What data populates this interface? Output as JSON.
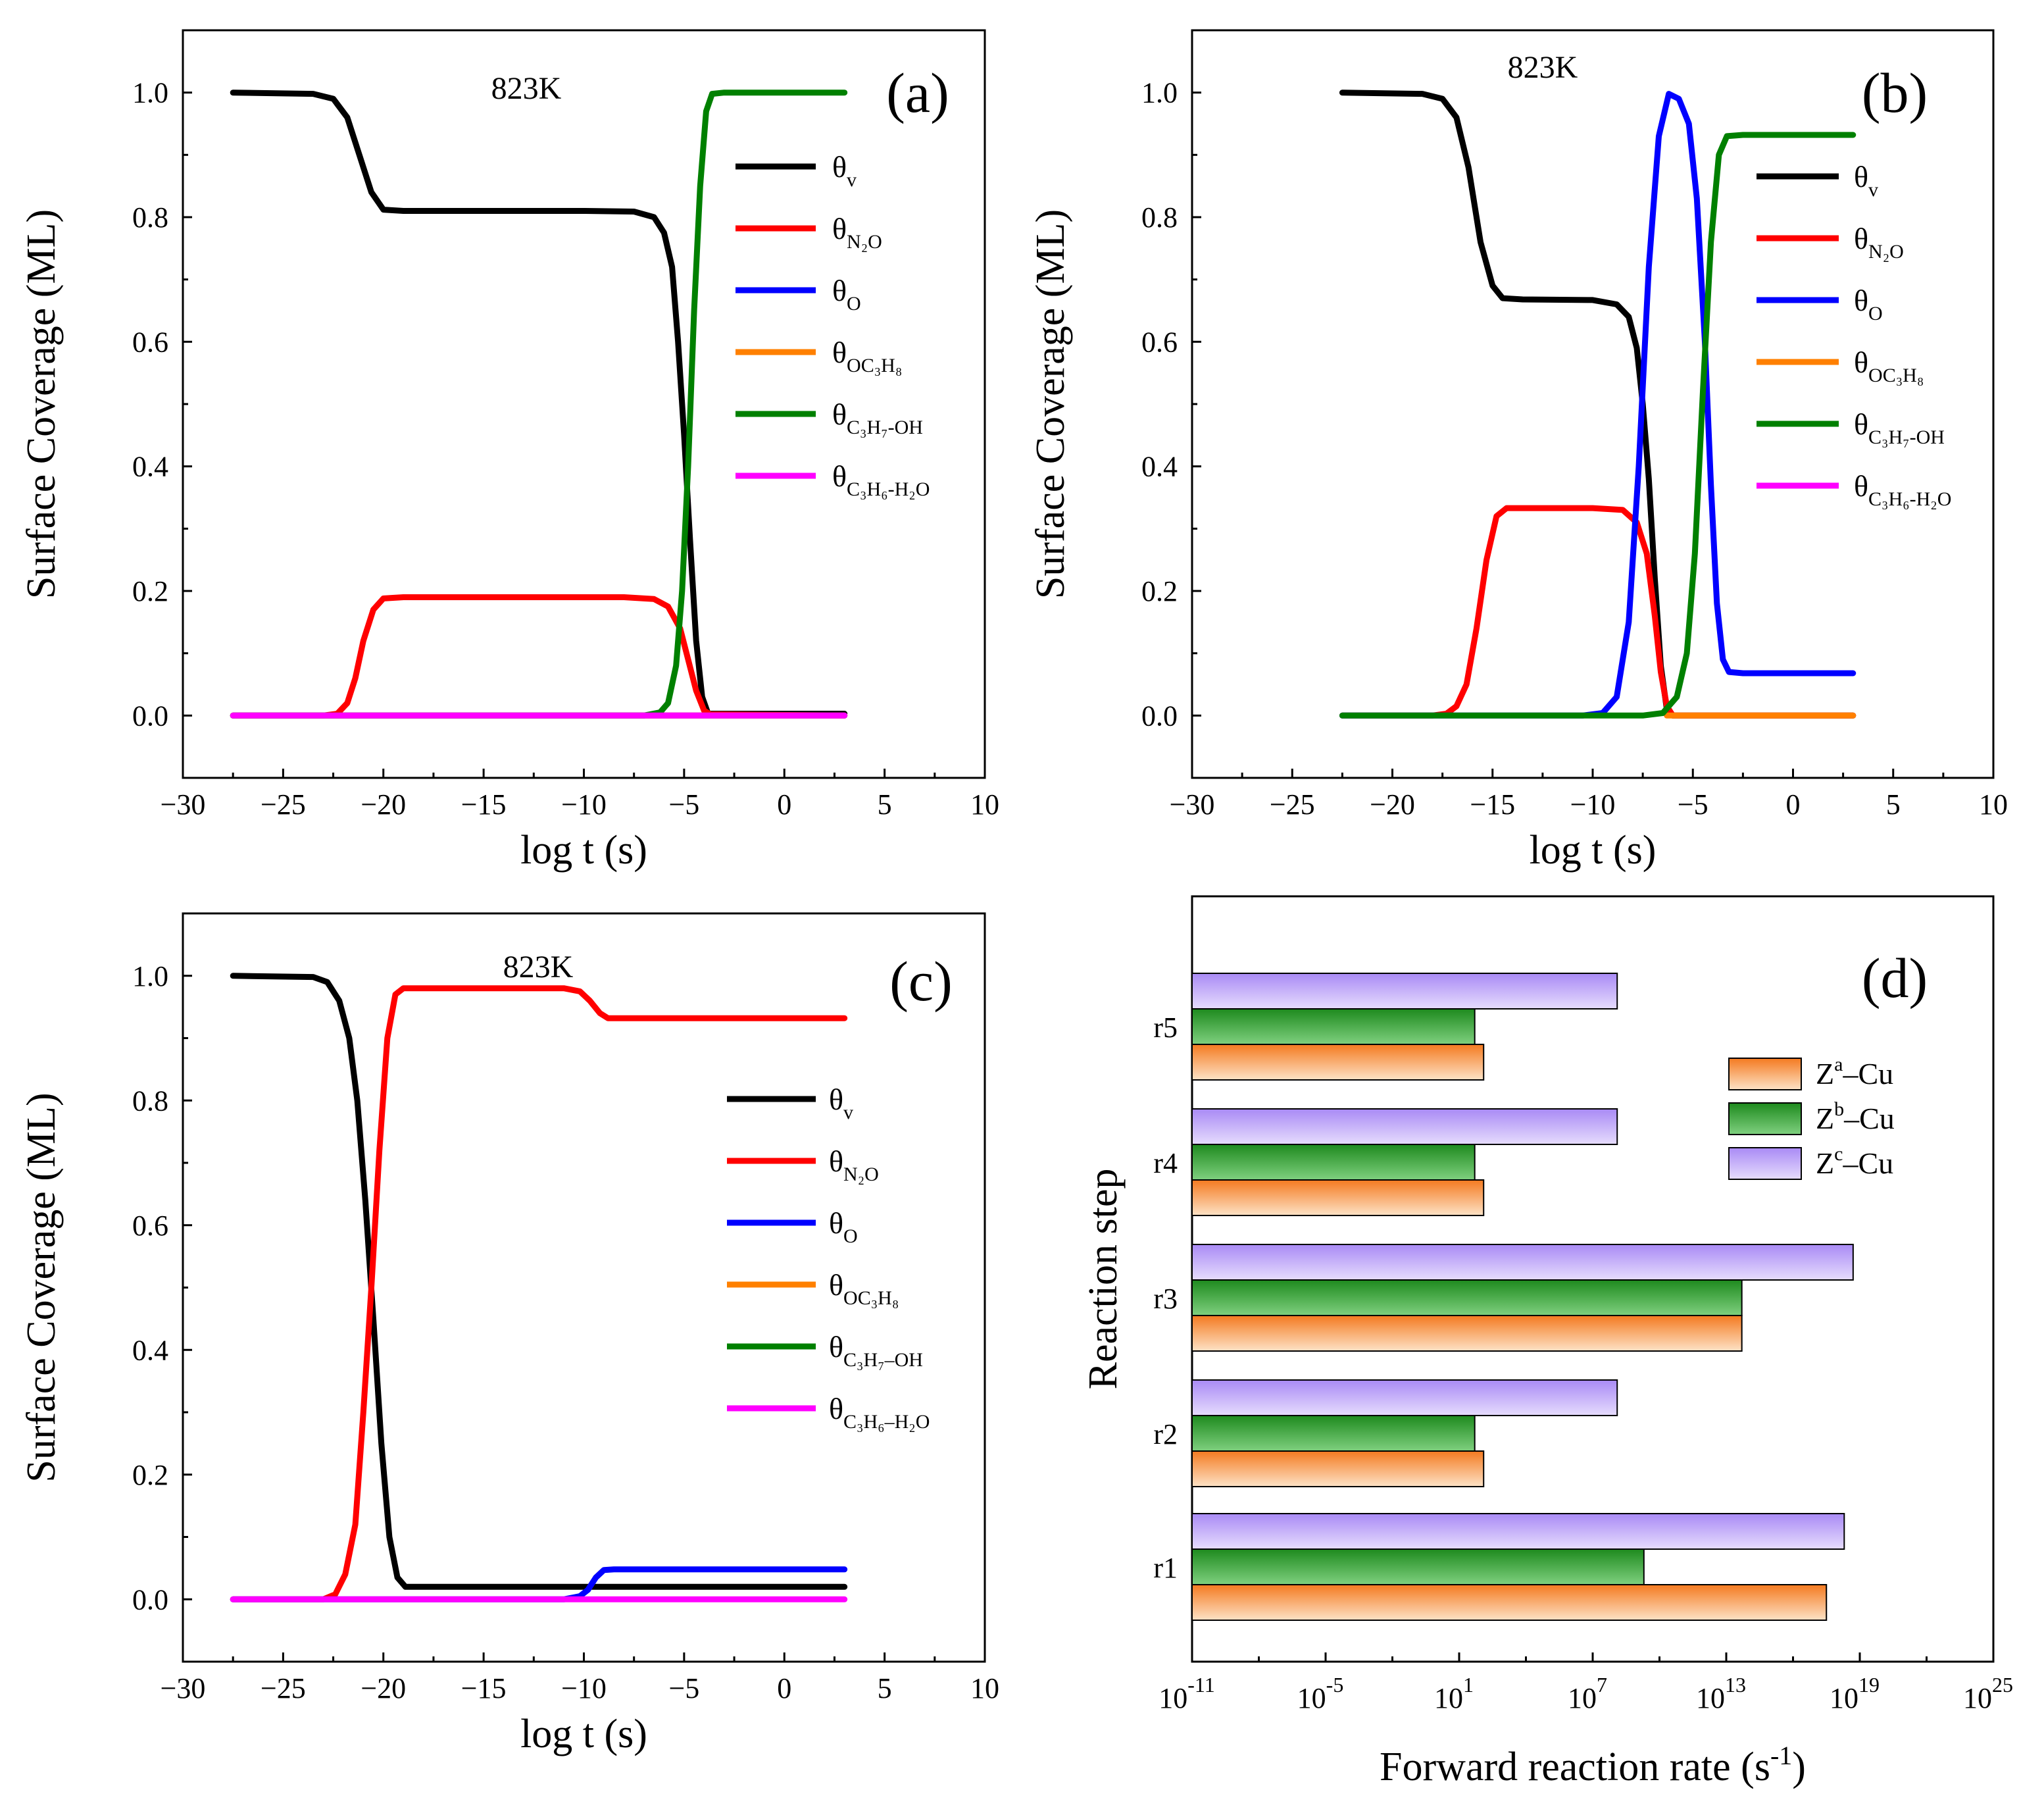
{
  "figure": {
    "panels": [
      "(a)",
      "(b)",
      "(c)",
      "(d)"
    ]
  },
  "chart_data": [
    {
      "type": "line",
      "panel": "(a)",
      "annotation": "823K",
      "xlabel": "log t (s)",
      "ylabel": "Surface Coverage (ML)",
      "xlim": [
        -30,
        10
      ],
      "ylim": [
        -0.1,
        1.1
      ],
      "xticks": [
        -30,
        -25,
        -20,
        -15,
        -10,
        -5,
        0,
        5,
        10
      ],
      "yticks": [
        0.0,
        0.2,
        0.4,
        0.6,
        0.8,
        1.0
      ],
      "legend_position": "right",
      "series": [
        {
          "name": "θv",
          "label": "θ",
          "sub": "v",
          "color": "#000000",
          "points": [
            [
              -27.5,
              1.0
            ],
            [
              -23.5,
              0.998
            ],
            [
              -22.5,
              0.99
            ],
            [
              -21.8,
              0.96
            ],
            [
              -21.2,
              0.9
            ],
            [
              -20.6,
              0.84
            ],
            [
              -20.0,
              0.812
            ],
            [
              -19,
              0.81
            ],
            [
              -10,
              0.81
            ],
            [
              -7.5,
              0.809
            ],
            [
              -6.5,
              0.8
            ],
            [
              -6.0,
              0.775
            ],
            [
              -5.6,
              0.72
            ],
            [
              -5.3,
              0.6
            ],
            [
              -5.0,
              0.45
            ],
            [
              -4.7,
              0.28
            ],
            [
              -4.4,
              0.12
            ],
            [
              -4.1,
              0.03
            ],
            [
              -3.8,
              0.003
            ],
            [
              -2,
              0.003
            ],
            [
              3,
              0.003
            ]
          ]
        },
        {
          "name": "θN2O",
          "label": "θ",
          "sub": "N₂O",
          "color": "#ff0000",
          "points": [
            [
              -27.5,
              0.0
            ],
            [
              -23,
              0.0
            ],
            [
              -22.3,
              0.003
            ],
            [
              -21.8,
              0.02
            ],
            [
              -21.4,
              0.06
            ],
            [
              -21.0,
              0.12
            ],
            [
              -20.5,
              0.17
            ],
            [
              -20.0,
              0.188
            ],
            [
              -19,
              0.19
            ],
            [
              -8,
              0.19
            ],
            [
              -6.5,
              0.187
            ],
            [
              -5.8,
              0.175
            ],
            [
              -5.2,
              0.14
            ],
            [
              -4.8,
              0.09
            ],
            [
              -4.4,
              0.04
            ],
            [
              -4.0,
              0.008
            ],
            [
              -3.7,
              0.002
            ],
            [
              3,
              0.0
            ]
          ]
        },
        {
          "name": "θO",
          "label": "θ",
          "sub": "O",
          "color": "#0000ff",
          "points": [
            [
              -27.5,
              0.0
            ],
            [
              3,
              0.0
            ]
          ]
        },
        {
          "name": "θOC3H8",
          "label": "θ",
          "sub": "OC₃H₈",
          "color": "#ff8000",
          "points": [
            [
              -27.5,
              0.0
            ],
            [
              3,
              0.0
            ]
          ]
        },
        {
          "name": "θC3H7-OH",
          "label": "θ",
          "sub": "C₃H₇-OH",
          "color": "#008000",
          "points": [
            [
              -27.5,
              0.0
            ],
            [
              -7,
              0.0
            ],
            [
              -6.2,
              0.005
            ],
            [
              -5.8,
              0.02
            ],
            [
              -5.4,
              0.08
            ],
            [
              -5.1,
              0.2
            ],
            [
              -4.8,
              0.4
            ],
            [
              -4.5,
              0.65
            ],
            [
              -4.2,
              0.85
            ],
            [
              -3.9,
              0.97
            ],
            [
              -3.6,
              0.998
            ],
            [
              -3,
              1.0
            ],
            [
              3,
              1.0
            ]
          ]
        },
        {
          "name": "θC3H6-H2O",
          "label": "θ",
          "sub": "C₃H₆-H₂O",
          "color": "#ff00ff",
          "points": [
            [
              -27.5,
              0.0
            ],
            [
              3,
              0.0
            ]
          ]
        }
      ]
    },
    {
      "type": "line",
      "panel": "(b)",
      "annotation": "823K",
      "xlabel": "log t (s)",
      "ylabel": "Surface Coverage (ML)",
      "xlim": [
        -30,
        10
      ],
      "ylim": [
        -0.1,
        1.1
      ],
      "xticks": [
        -30,
        -25,
        -20,
        -15,
        -10,
        -5,
        0,
        5,
        10
      ],
      "yticks": [
        0.0,
        0.2,
        0.4,
        0.6,
        0.8,
        1.0
      ],
      "legend_position": "right",
      "series": [
        {
          "name": "θv",
          "label": "θ",
          "sub": "v",
          "color": "#000000",
          "points": [
            [
              -22.5,
              1.0
            ],
            [
              -18.5,
              0.998
            ],
            [
              -17.5,
              0.99
            ],
            [
              -16.8,
              0.96
            ],
            [
              -16.2,
              0.88
            ],
            [
              -15.6,
              0.76
            ],
            [
              -15.0,
              0.69
            ],
            [
              -14.5,
              0.67
            ],
            [
              -13.5,
              0.668
            ],
            [
              -10,
              0.667
            ],
            [
              -8.8,
              0.66
            ],
            [
              -8.2,
              0.64
            ],
            [
              -7.8,
              0.59
            ],
            [
              -7.5,
              0.5
            ],
            [
              -7.2,
              0.38
            ],
            [
              -6.9,
              0.22
            ],
            [
              -6.6,
              0.08
            ],
            [
              -6.3,
              0.01
            ],
            [
              -6.0,
              0.0
            ],
            [
              3,
              0.0
            ]
          ]
        },
        {
          "name": "θN2O",
          "label": "θ",
          "sub": "N₂O",
          "color": "#ff0000",
          "points": [
            [
              -22.5,
              0.0
            ],
            [
              -18,
              0.0
            ],
            [
              -17.3,
              0.003
            ],
            [
              -16.8,
              0.015
            ],
            [
              -16.3,
              0.05
            ],
            [
              -15.8,
              0.14
            ],
            [
              -15.3,
              0.25
            ],
            [
              -14.8,
              0.32
            ],
            [
              -14.3,
              0.333
            ],
            [
              -10,
              0.333
            ],
            [
              -8.5,
              0.33
            ],
            [
              -7.8,
              0.31
            ],
            [
              -7.3,
              0.26
            ],
            [
              -6.9,
              0.16
            ],
            [
              -6.6,
              0.07
            ],
            [
              -6.3,
              0.015
            ],
            [
              -6.0,
              0.0
            ],
            [
              3,
              0.0
            ]
          ]
        },
        {
          "name": "θO",
          "label": "θ",
          "sub": "O",
          "color": "#0000ff",
          "points": [
            [
              -22.5,
              0.0
            ],
            [
              -10.5,
              0.0
            ],
            [
              -9.5,
              0.004
            ],
            [
              -8.8,
              0.03
            ],
            [
              -8.2,
              0.15
            ],
            [
              -7.7,
              0.4
            ],
            [
              -7.2,
              0.72
            ],
            [
              -6.7,
              0.93
            ],
            [
              -6.2,
              0.998
            ],
            [
              -5.7,
              0.99
            ],
            [
              -5.2,
              0.95
            ],
            [
              -4.8,
              0.83
            ],
            [
              -4.4,
              0.6
            ],
            [
              -4.1,
              0.37
            ],
            [
              -3.8,
              0.18
            ],
            [
              -3.5,
              0.09
            ],
            [
              -3.2,
              0.07
            ],
            [
              -2.5,
              0.068
            ],
            [
              3,
              0.068
            ]
          ]
        },
        {
          "name": "θOC3H8",
          "label": "θ",
          "sub": "OC₃H₈",
          "color": "#ff8000",
          "points": [
            [
              -6.3,
              0.0
            ],
            [
              3,
              0.0
            ]
          ]
        },
        {
          "name": "θC3H7-OH",
          "label": "θ",
          "sub": "C₃H₇-OH",
          "color": "#008000",
          "points": [
            [
              -22.5,
              0.0
            ],
            [
              -7.5,
              0.0
            ],
            [
              -6.5,
              0.004
            ],
            [
              -5.8,
              0.03
            ],
            [
              -5.3,
              0.1
            ],
            [
              -4.9,
              0.26
            ],
            [
              -4.5,
              0.52
            ],
            [
              -4.1,
              0.76
            ],
            [
              -3.7,
              0.9
            ],
            [
              -3.3,
              0.93
            ],
            [
              -2.5,
              0.932
            ],
            [
              3,
              0.932
            ]
          ]
        },
        {
          "name": "θC3H6-H2O",
          "label": "θ",
          "sub": "C₃H₆-H₂O",
          "color": "#ff00ff",
          "points": []
        }
      ]
    },
    {
      "type": "line",
      "panel": "(c)",
      "annotation": "823K",
      "xlabel": "log t (s)",
      "ylabel": "Surface Coverage (ML)",
      "xlim": [
        -30,
        10
      ],
      "ylim": [
        -0.1,
        1.1
      ],
      "xticks": [
        -30,
        -25,
        -20,
        -15,
        -10,
        -5,
        0,
        5,
        10
      ],
      "yticks": [
        0.0,
        0.2,
        0.4,
        0.6,
        0.8,
        1.0
      ],
      "legend_position": "right",
      "series": [
        {
          "name": "θv",
          "label": "θ",
          "sub": "v",
          "color": "#000000",
          "points": [
            [
              -27.5,
              1.0
            ],
            [
              -23.5,
              0.998
            ],
            [
              -22.8,
              0.99
            ],
            [
              -22.2,
              0.96
            ],
            [
              -21.7,
              0.9
            ],
            [
              -21.3,
              0.8
            ],
            [
              -20.9,
              0.64
            ],
            [
              -20.5,
              0.45
            ],
            [
              -20.1,
              0.25
            ],
            [
              -19.7,
              0.1
            ],
            [
              -19.3,
              0.035
            ],
            [
              -18.9,
              0.02
            ],
            [
              -10,
              0.02
            ],
            [
              3,
              0.02
            ]
          ]
        },
        {
          "name": "θN2O",
          "label": "θ",
          "sub": "N₂O",
          "color": "#ff0000",
          "points": [
            [
              -27.5,
              0.0
            ],
            [
              -23,
              0.0
            ],
            [
              -22.4,
              0.008
            ],
            [
              -21.9,
              0.04
            ],
            [
              -21.4,
              0.12
            ],
            [
              -21.0,
              0.3
            ],
            [
              -20.6,
              0.5
            ],
            [
              -20.2,
              0.72
            ],
            [
              -19.8,
              0.9
            ],
            [
              -19.4,
              0.97
            ],
            [
              -19.0,
              0.98
            ],
            [
              -15,
              0.98
            ],
            [
              -11,
              0.98
            ],
            [
              -10.2,
              0.975
            ],
            [
              -9.7,
              0.96
            ],
            [
              -9.2,
              0.94
            ],
            [
              -8.8,
              0.932
            ],
            [
              -8,
              0.932
            ],
            [
              3,
              0.932
            ]
          ]
        },
        {
          "name": "θO",
          "label": "θ",
          "sub": "O",
          "color": "#0000ff",
          "points": [
            [
              -27.5,
              0.0
            ],
            [
              -11,
              0.0
            ],
            [
              -10.2,
              0.005
            ],
            [
              -9.8,
              0.015
            ],
            [
              -9.4,
              0.035
            ],
            [
              -9.0,
              0.047
            ],
            [
              -8.5,
              0.048
            ],
            [
              3,
              0.048
            ]
          ]
        },
        {
          "name": "θOC3H8",
          "label": "θ",
          "sub": "OC₃H₈",
          "color": "#ff8000",
          "points": []
        },
        {
          "name": "θC3H7–OH",
          "label": "θ",
          "sub": "C₃H₇–OH",
          "color": "#008000",
          "points": []
        },
        {
          "name": "θC3H6–H2O",
          "label": "θ",
          "sub": "C₃H₆–H₂O",
          "color": "#ff00ff",
          "points": [
            [
              -27.5,
              0.0
            ],
            [
              3,
              0.0
            ]
          ]
        }
      ]
    },
    {
      "type": "bar",
      "orientation": "horizontal",
      "panel": "(d)",
      "xlabel": "Forward reaction rate (s⁻¹)",
      "xlabel_main": "Forward reaction rate (s",
      "xlabel_sup": "-1",
      "xlabel_close": ")",
      "ylabel": "Reaction step",
      "xscale": "log10",
      "xlim_log10": [
        -11,
        25
      ],
      "xticks_log10": [
        -11,
        -5,
        1,
        7,
        13,
        19,
        25
      ],
      "tick_base": "10",
      "tick_exps": [
        "-11",
        "-5",
        "1",
        "7",
        "13",
        "19",
        "25"
      ],
      "categories": [
        "r1",
        "r2",
        "r3",
        "r4",
        "r5"
      ],
      "legend_position": "right",
      "series": [
        {
          "name": "Zᵃ–Cu",
          "base": "Z",
          "sup": "a",
          "suffix": "–Cu",
          "color_top": "#f47a20",
          "color_bottom": "#fde2c6",
          "log10_values": [
            17.5,
            2.1,
            13.7,
            2.1,
            2.1
          ]
        },
        {
          "name": "Zᵇ–Cu",
          "base": "Z",
          "sup": "b",
          "suffix": "–Cu",
          "color_top": "#1e8a1e",
          "color_bottom": "#7fd07f",
          "log10_values": [
            9.3,
            1.7,
            13.7,
            1.7,
            1.7
          ]
        },
        {
          "name": "Zᶜ–Cu",
          "base": "Z",
          "sup": "c",
          "suffix": "–Cu",
          "color_top": "#a98af5",
          "color_bottom": "#e6dcfd",
          "log10_values": [
            18.3,
            8.1,
            18.7,
            8.1,
            8.1
          ]
        }
      ]
    }
  ]
}
